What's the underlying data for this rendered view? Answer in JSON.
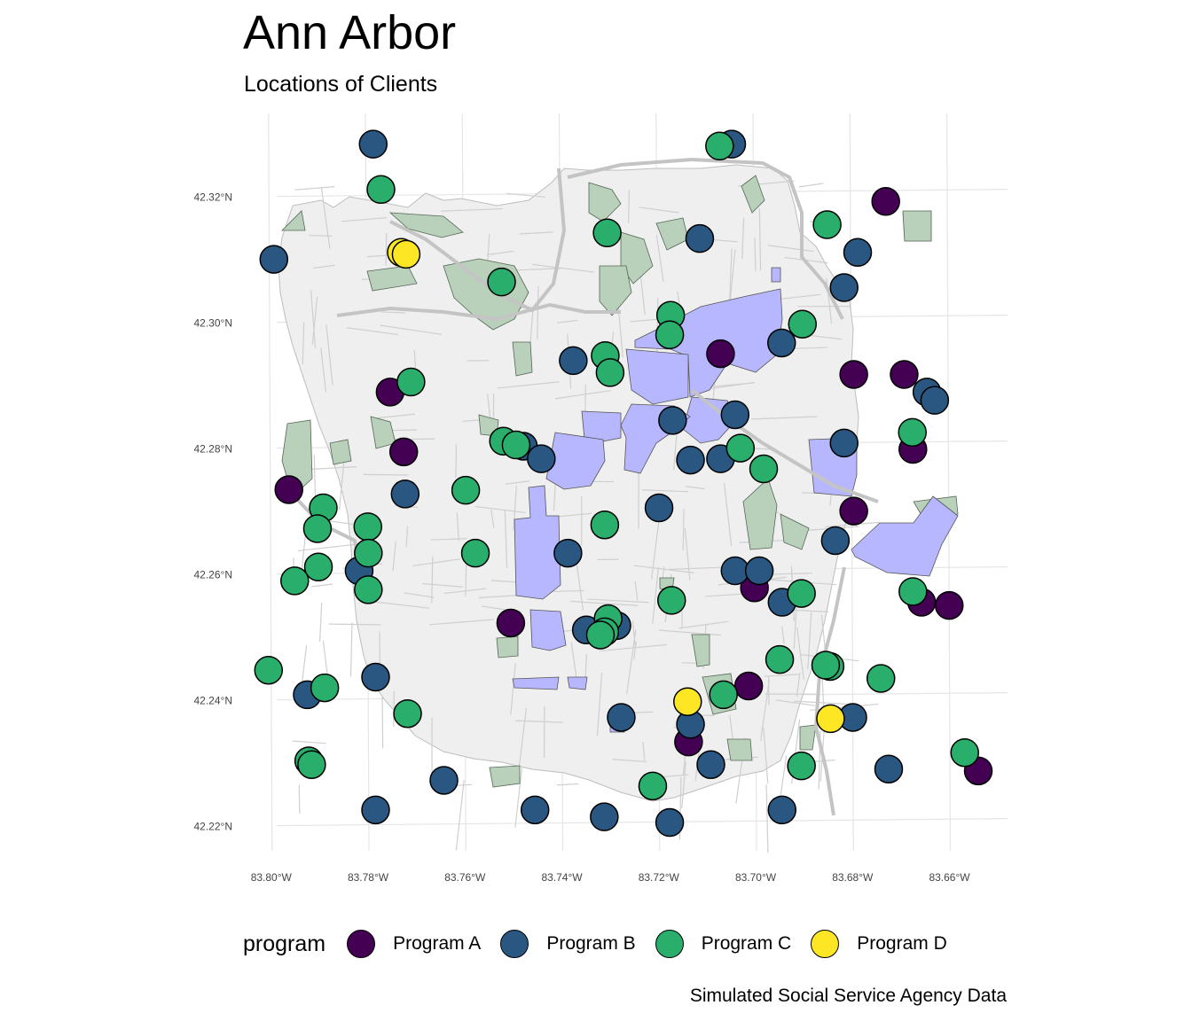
{
  "title": "Ann Arbor",
  "subtitle": "Locations of Clients",
  "caption": "Simulated Social Service Agency Data",
  "legend": {
    "title": "program",
    "items": [
      {
        "label": "Program A",
        "color": "#440154"
      },
      {
        "label": "Program B",
        "color": "#2A5782"
      },
      {
        "label": "Program C",
        "color": "#29AF6B"
      },
      {
        "label": "Program D",
        "color": "#FDE725"
      }
    ]
  },
  "colors": {
    "city_fill": "#efefef",
    "roads": "#cfcfcf",
    "parks": "#b9d1bb",
    "highlight_areas": "#b7b7ff",
    "grid": "#e6e6e6"
  },
  "chart_data": {
    "type": "scatter",
    "xlabel": "",
    "ylabel": "",
    "xlim": [
      -83.806,
      -83.646
    ],
    "ylim": [
      42.216,
      42.336
    ],
    "x_ticks": [
      {
        "value": -83.8,
        "label": "83.80°W"
      },
      {
        "value": -83.78,
        "label": "83.78°W"
      },
      {
        "value": -83.76,
        "label": "83.76°W"
      },
      {
        "value": -83.74,
        "label": "83.74°W"
      },
      {
        "value": -83.72,
        "label": "83.72°W"
      },
      {
        "value": -83.7,
        "label": "83.70°W"
      },
      {
        "value": -83.68,
        "label": "83.68°W"
      },
      {
        "value": -83.66,
        "label": "83.66°W"
      }
    ],
    "y_ticks": [
      {
        "value": 42.22,
        "label": "42.22°N"
      },
      {
        "value": 42.24,
        "label": "42.24°N"
      },
      {
        "value": 42.26,
        "label": "42.26°N"
      },
      {
        "value": 42.28,
        "label": "42.28°N"
      },
      {
        "value": 42.3,
        "label": "42.30°N"
      },
      {
        "value": 42.32,
        "label": "42.32°N"
      }
    ],
    "grid": true,
    "legend_position": "bottom",
    "series": [
      {
        "name": "Program A",
        "points": [
          [
            -83.6726,
            42.3192
          ],
          [
            -83.7067,
            42.295
          ],
          [
            -83.6792,
            42.2917
          ],
          [
            -83.6688,
            42.2917
          ],
          [
            -83.7749,
            42.2889
          ],
          [
            -83.7721,
            42.2794
          ],
          [
            -83.667,
            42.2798
          ],
          [
            -83.7958,
            42.2734
          ],
          [
            -83.6792,
            42.27
          ],
          [
            -83.6997,
            42.2578
          ],
          [
            -83.6652,
            42.2555
          ],
          [
            -83.6595,
            42.255
          ],
          [
            -83.75,
            42.2522
          ],
          [
            -83.7009,
            42.2422
          ],
          [
            -83.7133,
            42.2333
          ],
          [
            -83.6535,
            42.2287
          ]
        ]
      },
      {
        "name": "Program B",
        "points": [
          [
            -83.7784,
            42.3283
          ],
          [
            -83.7044,
            42.3283
          ],
          [
            -83.7989,
            42.31
          ],
          [
            -83.711,
            42.3133
          ],
          [
            -83.6784,
            42.3111
          ],
          [
            -83.6812,
            42.3055
          ],
          [
            -83.6941,
            42.2967
          ],
          [
            -83.7371,
            42.2939
          ],
          [
            -83.6641,
            42.2889
          ],
          [
            -83.6625,
            42.2876
          ],
          [
            -83.7037,
            42.2853
          ],
          [
            -83.7166,
            42.2844
          ],
          [
            -83.6812,
            42.2808
          ],
          [
            -83.7474,
            42.2803
          ],
          [
            -83.7437,
            42.2783
          ],
          [
            -83.7129,
            42.2781
          ],
          [
            -83.7067,
            42.2783
          ],
          [
            -83.7718,
            42.2727
          ],
          [
            -83.7194,
            42.2705
          ],
          [
            -83.683,
            42.2653
          ],
          [
            -83.7382,
            42.2633
          ],
          [
            -83.7813,
            42.2605
          ],
          [
            -83.7037,
            42.2605
          ],
          [
            -83.6987,
            42.2605
          ],
          [
            -83.694,
            42.2555
          ],
          [
            -83.7344,
            42.2511
          ],
          [
            -83.7281,
            42.2518
          ],
          [
            -83.7779,
            42.2436
          ],
          [
            -83.792,
            42.2408
          ],
          [
            -83.7272,
            42.2372
          ],
          [
            -83.6794,
            42.2372
          ],
          [
            -83.7129,
            42.2361
          ],
          [
            -83.7087,
            42.2297
          ],
          [
            -83.672,
            42.229
          ],
          [
            -83.7638,
            42.2272
          ],
          [
            -83.7779,
            42.2225
          ],
          [
            -83.745,
            42.2225
          ],
          [
            -83.7307,
            42.2214
          ],
          [
            -83.7172,
            42.2205
          ],
          [
            -83.694,
            42.2225
          ]
        ]
      },
      {
        "name": "Program C",
        "points": [
          [
            -83.7069,
            42.328
          ],
          [
            -83.7768,
            42.3211
          ],
          [
            -83.6847,
            42.3155
          ],
          [
            -83.7301,
            42.3142
          ],
          [
            -83.7519,
            42.3064
          ],
          [
            -83.717,
            42.3011
          ],
          [
            -83.6898,
            42.2997
          ],
          [
            -83.7172,
            42.298
          ],
          [
            -83.7305,
            42.2947
          ],
          [
            -83.7295,
            42.292
          ],
          [
            -83.7706,
            42.2905
          ],
          [
            -83.6671,
            42.2825
          ],
          [
            -83.7515,
            42.2811
          ],
          [
            -83.7489,
            42.2805
          ],
          [
            -83.7026,
            42.28
          ],
          [
            -83.6978,
            42.2767
          ],
          [
            -83.7593,
            42.2733
          ],
          [
            -83.7887,
            42.2705
          ],
          [
            -83.7899,
            42.2672
          ],
          [
            -83.7795,
            42.2675
          ],
          [
            -83.7306,
            42.2678
          ],
          [
            -83.7573,
            42.2633
          ],
          [
            -83.7794,
            42.2633
          ],
          [
            -83.7897,
            42.2611
          ],
          [
            -83.7946,
            42.2589
          ],
          [
            -83.7794,
            42.2575
          ],
          [
            -83.667,
            42.2572
          ],
          [
            -83.69,
            42.2569
          ],
          [
            -83.7168,
            42.2558
          ],
          [
            -83.7299,
            42.2529
          ],
          [
            -83.7306,
            42.2508
          ],
          [
            -83.7315,
            42.2503
          ],
          [
            -83.6945,
            42.2464
          ],
          [
            -83.6841,
            42.2453
          ],
          [
            -83.685,
            42.2455
          ],
          [
            -83.6736,
            42.2434
          ],
          [
            -83.8,
            42.2447
          ],
          [
            -83.7884,
            42.2419
          ],
          [
            -83.7061,
            42.2408
          ],
          [
            -83.7713,
            42.2378
          ],
          [
            -83.7917,
            42.2303
          ],
          [
            -83.7911,
            42.2297
          ],
          [
            -83.69,
            42.2295
          ],
          [
            -83.6563,
            42.2316
          ],
          [
            -83.7207,
            42.2263
          ]
        ]
      },
      {
        "name": "Program D",
        "points": [
          [
            -83.7726,
            42.3111
          ],
          [
            -83.7716,
            42.3108
          ],
          [
            -83.7135,
            42.2397
          ],
          [
            -83.684,
            42.237
          ]
        ]
      }
    ]
  }
}
